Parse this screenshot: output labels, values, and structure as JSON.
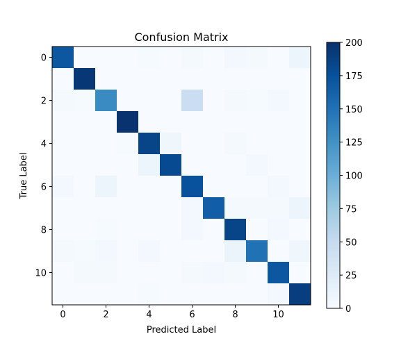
{
  "chart_data": {
    "type": "heatmap",
    "title": "Confusion Matrix",
    "xlabel": "Predicted Label",
    "ylabel": "True Label",
    "x_ticks": [
      0,
      2,
      4,
      6,
      8,
      10
    ],
    "y_ticks": [
      0,
      2,
      4,
      6,
      8,
      10
    ],
    "colormap": "Blues",
    "vmin": 0,
    "vmax": 200,
    "colorbar_ticks": [
      0,
      25,
      50,
      75,
      100,
      125,
      150,
      175,
      200
    ],
    "matrix": [
      [
        170,
        0,
        0,
        0,
        2,
        0,
        3,
        0,
        5,
        3,
        0,
        10
      ],
      [
        0,
        195,
        0,
        0,
        0,
        0,
        0,
        0,
        0,
        0,
        0,
        0
      ],
      [
        3,
        2,
        130,
        0,
        0,
        0,
        45,
        0,
        3,
        2,
        5,
        0
      ],
      [
        0,
        0,
        0,
        198,
        0,
        0,
        0,
        0,
        0,
        0,
        0,
        0
      ],
      [
        0,
        0,
        0,
        2,
        185,
        8,
        0,
        0,
        3,
        0,
        0,
        0
      ],
      [
        0,
        0,
        0,
        0,
        10,
        180,
        0,
        0,
        0,
        5,
        0,
        0
      ],
      [
        5,
        0,
        10,
        0,
        0,
        0,
        175,
        0,
        0,
        0,
        5,
        0
      ],
      [
        0,
        0,
        0,
        0,
        0,
        0,
        5,
        165,
        3,
        3,
        3,
        10
      ],
      [
        0,
        0,
        2,
        0,
        0,
        0,
        5,
        0,
        185,
        0,
        5,
        0
      ],
      [
        3,
        2,
        5,
        0,
        5,
        0,
        0,
        0,
        12,
        150,
        0,
        8
      ],
      [
        0,
        3,
        3,
        0,
        0,
        0,
        3,
        5,
        3,
        0,
        170,
        0
      ],
      [
        0,
        0,
        0,
        0,
        2,
        0,
        0,
        0,
        0,
        0,
        5,
        190
      ]
    ]
  }
}
